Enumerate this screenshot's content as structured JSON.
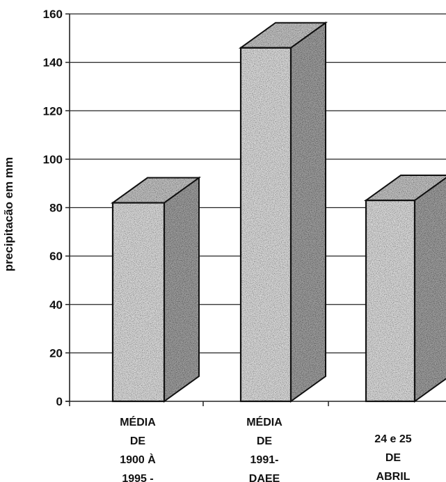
{
  "chart_data": {
    "type": "bar",
    "style": "3d-speckled",
    "ylabel": "precipitacão em mm",
    "ylim": [
      0,
      160
    ],
    "yticks": [
      "0",
      "20",
      "40",
      "60",
      "80",
      "100",
      "120",
      "140",
      "160"
    ],
    "grid": true,
    "categories": [
      [
        "MÉDIA",
        "DE",
        "1900 À",
        "1995 -"
      ],
      [
        "MÉDIA",
        "DE",
        "1991-",
        "DAEE"
      ],
      [
        "24 e 25",
        "DE",
        "ABRIL"
      ]
    ],
    "values": [
      82,
      146,
      83
    ],
    "colors": {
      "bar_face": "#d4d4d4",
      "bar_side": "#9a9a9a",
      "outline": "#111111",
      "grid": "#222222"
    }
  }
}
